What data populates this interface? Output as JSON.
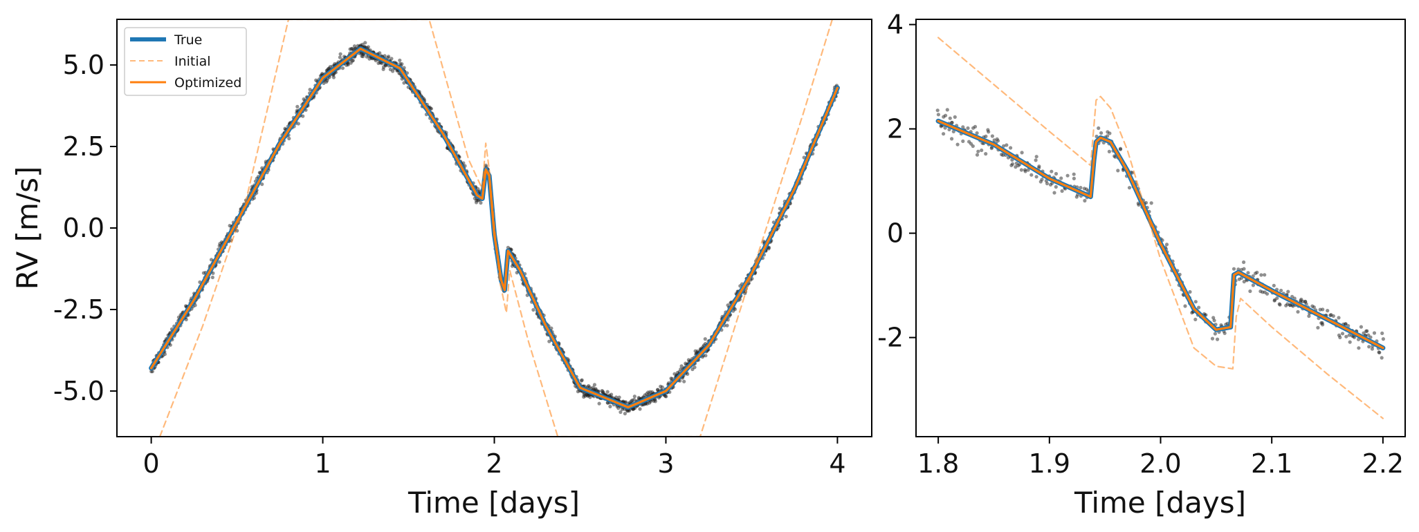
{
  "colors": {
    "true": "#1f77b4",
    "initial": "#ff7f0e",
    "optimized": "#ff7f0e",
    "data_points": "#222222"
  },
  "legend": {
    "true": "True",
    "initial": "Initial",
    "optimized": "Optimized",
    "placement": "upper-left"
  },
  "chart_data": [
    {
      "type": "line",
      "panel": "full",
      "xlabel": "Time [days]",
      "ylabel": "RV [m/s]",
      "xlim": [
        -0.2,
        4.2
      ],
      "ylim": [
        -6.4,
        6.4
      ],
      "xticks": [
        0,
        1,
        2,
        3,
        4
      ],
      "xtick_labels": [
        "0",
        "1",
        "2",
        "3",
        "4"
      ],
      "yticks": [
        5.0,
        2.5,
        0.0,
        -2.5,
        -5.0
      ],
      "ytick_labels": [
        "5.0",
        "2.5",
        "0.0",
        "-2.5",
        "-5.0"
      ],
      "grid": false,
      "series": [
        {
          "name": "True",
          "style": "solid-thick",
          "color": "#1f77b4",
          "x": [
            0,
            0.25,
            0.5,
            0.75,
            1.0,
            1.22,
            1.45,
            1.7,
            1.9,
            1.93,
            1.95,
            1.97,
            2.0,
            2.04,
            2.06,
            2.08,
            2.15,
            2.3,
            2.5,
            2.78,
            3.0,
            3.25,
            3.5,
            3.75,
            4.0
          ],
          "y": [
            -4.3,
            -2.2,
            0.2,
            2.6,
            4.6,
            5.5,
            4.9,
            2.9,
            1.0,
            0.9,
            1.8,
            1.6,
            -0.2,
            -1.6,
            -1.9,
            -0.7,
            -1.3,
            -3.0,
            -4.9,
            -5.5,
            -5.0,
            -3.6,
            -1.4,
            1.2,
            4.3
          ]
        },
        {
          "name": "Initial",
          "style": "dashed",
          "color": "#ff7f0e",
          "x": [
            0.05,
            0.3,
            0.55,
            0.8,
            1.62,
            1.85,
            1.93,
            1.95,
            1.97,
            2.03,
            2.07,
            2.09,
            2.2,
            2.37,
            3.2,
            3.5,
            3.8,
            3.97
          ],
          "y": [
            -6.4,
            -3.0,
            0.8,
            6.4,
            6.4,
            2.1,
            1.2,
            2.6,
            1.8,
            -1.6,
            -2.6,
            -1.3,
            -3.5,
            -6.4,
            -6.4,
            -1.4,
            3.5,
            6.4
          ]
        },
        {
          "name": "Optimized",
          "style": "solid",
          "color": "#ff7f0e",
          "x": [
            0,
            0.25,
            0.5,
            0.75,
            1.0,
            1.22,
            1.45,
            1.7,
            1.9,
            1.93,
            1.95,
            1.97,
            2.0,
            2.04,
            2.06,
            2.08,
            2.15,
            2.3,
            2.5,
            2.78,
            3.0,
            3.25,
            3.5,
            3.75,
            4.0
          ],
          "y": [
            -4.3,
            -2.2,
            0.2,
            2.6,
            4.6,
            5.5,
            4.9,
            2.9,
            1.0,
            0.9,
            1.8,
            1.6,
            -0.2,
            -1.6,
            -1.9,
            -0.7,
            -1.3,
            -3.0,
            -4.9,
            -5.5,
            -5.0,
            -3.6,
            -1.4,
            1.2,
            4.3
          ]
        }
      ]
    },
    {
      "type": "line",
      "panel": "zoom",
      "xlabel": "Time [days]",
      "ylabel": "",
      "xlim": [
        1.78,
        2.22
      ],
      "ylim": [
        -3.9,
        4.1
      ],
      "xticks": [
        1.8,
        1.9,
        2.0,
        2.1,
        2.2
      ],
      "xtick_labels": [
        "1.8",
        "1.9",
        "2.0",
        "2.1",
        "2.2"
      ],
      "yticks": [
        4,
        2,
        0,
        -2
      ],
      "ytick_labels": [
        "4",
        "2",
        "0",
        "-2"
      ],
      "grid": false,
      "series": [
        {
          "name": "True",
          "style": "solid-thick",
          "color": "#1f77b4",
          "x": [
            1.8,
            1.85,
            1.9,
            1.937,
            1.94,
            1.942,
            1.946,
            1.955,
            1.97,
            2.0,
            2.03,
            2.05,
            2.063,
            2.066,
            2.07,
            2.1,
            2.15,
            2.2
          ],
          "y": [
            2.15,
            1.7,
            1.05,
            0.7,
            1.4,
            1.75,
            1.83,
            1.75,
            1.2,
            -0.2,
            -1.45,
            -1.85,
            -1.8,
            -0.8,
            -0.75,
            -1.1,
            -1.65,
            -2.2
          ]
        },
        {
          "name": "Initial",
          "style": "dashed",
          "color": "#ff7f0e",
          "x": [
            1.8,
            1.85,
            1.9,
            1.937,
            1.942,
            1.946,
            1.955,
            1.97,
            2.0,
            2.03,
            2.05,
            2.065,
            2.068,
            2.072,
            2.1,
            2.15,
            2.2
          ],
          "y": [
            3.75,
            2.85,
            1.95,
            1.3,
            2.55,
            2.62,
            2.4,
            1.6,
            -0.5,
            -2.2,
            -2.55,
            -2.6,
            -1.6,
            -1.25,
            -1.8,
            -2.7,
            -3.55
          ]
        },
        {
          "name": "Optimized",
          "style": "solid",
          "color": "#ff7f0e",
          "x": [
            1.8,
            1.85,
            1.9,
            1.937,
            1.94,
            1.942,
            1.946,
            1.955,
            1.97,
            2.0,
            2.03,
            2.05,
            2.063,
            2.066,
            2.07,
            2.1,
            2.15,
            2.2
          ],
          "y": [
            2.15,
            1.7,
            1.05,
            0.7,
            1.4,
            1.75,
            1.83,
            1.75,
            1.2,
            -0.2,
            -1.45,
            -1.85,
            -1.8,
            -0.8,
            -0.75,
            -1.1,
            -1.65,
            -2.2
          ]
        }
      ]
    }
  ]
}
